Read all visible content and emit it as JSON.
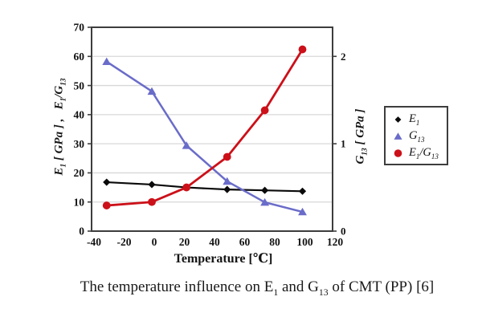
{
  "figure": {
    "caption_rich": "The temperature influence on E_{1} and G_{13} of CMT (PP) [6]"
  },
  "chart_data": {
    "type": "line",
    "title": "",
    "x_label": "Temperature [℃]",
    "x": [
      -30,
      0,
      23,
      50,
      75,
      100
    ],
    "series": [
      {
        "name": "E1",
        "label_rich": "E_{1}",
        "axis": "left",
        "marker": "diamond",
        "color": "#0a0a0a",
        "values": [
          16.8,
          16.0,
          15.0,
          14.3,
          14.0,
          13.7
        ]
      },
      {
        "name": "G13",
        "label_rich": "G_{13}",
        "axis": "right",
        "marker": "triangle",
        "color": "#6a6cc9",
        "values": [
          1.94,
          1.6,
          0.98,
          0.57,
          0.33,
          0.22
        ]
      },
      {
        "name": "E1_over_G13",
        "label_rich": "E_{1}/G_{13}",
        "axis": "left",
        "marker": "circle",
        "color": "#cc1019",
        "values": [
          8.8,
          10.0,
          15.0,
          25.5,
          41.5,
          62.4
        ]
      }
    ],
    "x_axis": {
      "min": -40,
      "max": 120,
      "ticks": [
        -40,
        -20,
        0,
        20,
        40,
        60,
        80,
        100,
        120
      ]
    },
    "y_left_axis": {
      "label_rich": "E_{1} [ GPa ] ,   E_{1}/G_{13}",
      "min": 0,
      "max": 70,
      "ticks": [
        0,
        10,
        20,
        30,
        40,
        50,
        60,
        70
      ]
    },
    "y_right_axis": {
      "label_rich": "G_{13} [ GPa ]",
      "min": 0,
      "max": 2.333,
      "ticks": [
        0,
        1,
        2
      ]
    },
    "grid": "horizontal-only",
    "legend_position": "right-outside",
    "colors": {
      "grid_line": "#d8d8d8",
      "frame": "#3d3d3d",
      "background": "#ffffff"
    }
  }
}
